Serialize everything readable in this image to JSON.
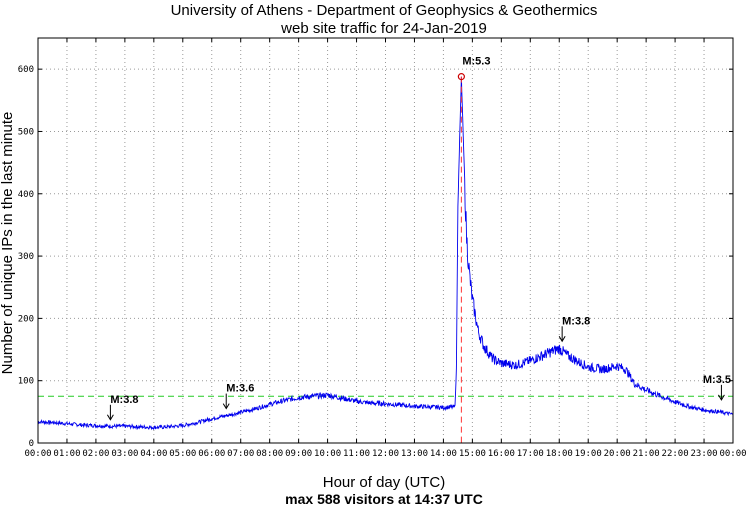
{
  "chart_data": {
    "type": "line",
    "title_line1": "University of Athens - Department of Geophysics & Geothermics",
    "title_line2": "web site traffic for 24-Jan-2019",
    "ylabel": "Number of unique IPs in the last minute",
    "xlabel": "Hour of day (UTC)",
    "footer": "max 588 visitors at 14:37 UTC",
    "xlim": [
      0,
      24
    ],
    "ylim": [
      0,
      650
    ],
    "yticks": [
      0,
      100,
      200,
      300,
      400,
      500,
      600
    ],
    "xtick_labels": [
      "00:00",
      "01:00",
      "02:00",
      "03:00",
      "04:00",
      "05:00",
      "06:00",
      "07:00",
      "08:00",
      "09:00",
      "10:00",
      "11:00",
      "12:00",
      "13:00",
      "14:00",
      "15:00",
      "16:00",
      "17:00",
      "18:00",
      "19:00",
      "20:00",
      "21:00",
      "22:00",
      "23:00",
      "00:00"
    ],
    "grid": true,
    "threshold": 75,
    "peak": {
      "x": 14.62,
      "y": 588,
      "label": "M:5.3"
    },
    "series": [
      {
        "color": "#0000ee",
        "points": [
          [
            0,
            34
          ],
          [
            0.5,
            33
          ],
          [
            1,
            31
          ],
          [
            1.5,
            29
          ],
          [
            2,
            28
          ],
          [
            2.5,
            27
          ],
          [
            3,
            27
          ],
          [
            3.5,
            26
          ],
          [
            4,
            25
          ],
          [
            4.5,
            26
          ],
          [
            5,
            28
          ],
          [
            5.5,
            33
          ],
          [
            6,
            39
          ],
          [
            6.5,
            44
          ],
          [
            7,
            49
          ],
          [
            7.5,
            55
          ],
          [
            8,
            62
          ],
          [
            8.5,
            68
          ],
          [
            9,
            73
          ],
          [
            9.5,
            75
          ],
          [
            10,
            77
          ],
          [
            10.5,
            72
          ],
          [
            11,
            67
          ],
          [
            11.5,
            64
          ],
          [
            12,
            63
          ],
          [
            12.5,
            61
          ],
          [
            13,
            59
          ],
          [
            13.5,
            58
          ],
          [
            14,
            57
          ],
          [
            14.4,
            58
          ],
          [
            14.45,
            120
          ],
          [
            14.5,
            380
          ],
          [
            14.58,
            520
          ],
          [
            14.62,
            588
          ],
          [
            14.7,
            470
          ],
          [
            14.8,
            330
          ],
          [
            14.9,
            270
          ],
          [
            15,
            230
          ],
          [
            15.2,
            180
          ],
          [
            15.4,
            155
          ],
          [
            15.7,
            135
          ],
          [
            16,
            128
          ],
          [
            16.5,
            125
          ],
          [
            17,
            132
          ],
          [
            17.5,
            142
          ],
          [
            17.8,
            148
          ],
          [
            18,
            152
          ],
          [
            18.3,
            140
          ],
          [
            18.6,
            132
          ],
          [
            19,
            122
          ],
          [
            19.5,
            118
          ],
          [
            20,
            124
          ],
          [
            20.3,
            118
          ],
          [
            20.6,
            95
          ],
          [
            21,
            85
          ],
          [
            21.5,
            75
          ],
          [
            22,
            66
          ],
          [
            22.5,
            58
          ],
          [
            23,
            53
          ],
          [
            23.5,
            50
          ],
          [
            24,
            46
          ]
        ]
      }
    ],
    "annotations": [
      {
        "x": 2.5,
        "y": 26,
        "label": "M:3.8"
      },
      {
        "x": 6.5,
        "y": 44,
        "label": "M:3.6"
      },
      {
        "x": 18.1,
        "y": 152,
        "label": "M:3.8"
      },
      {
        "x": 23.6,
        "y": 58,
        "label": "M:3.5"
      }
    ]
  }
}
